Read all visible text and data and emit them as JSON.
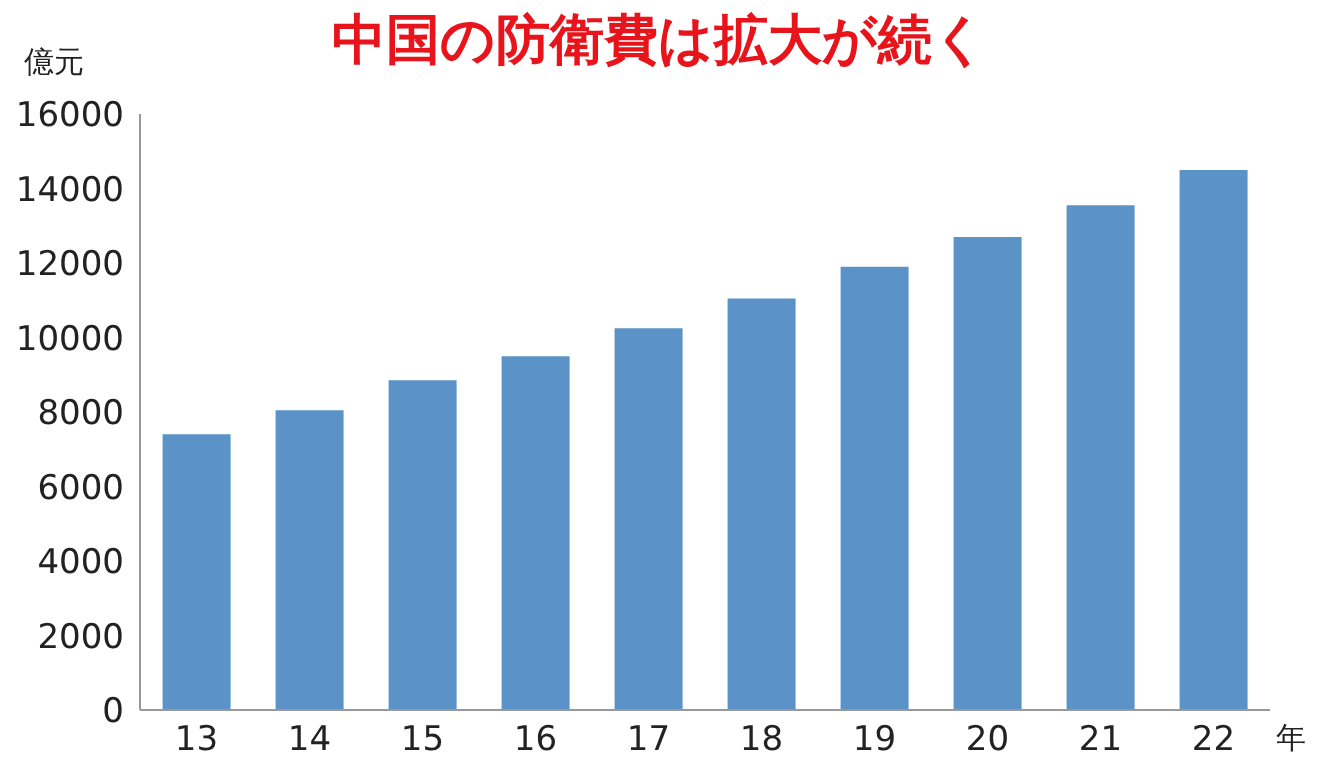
{
  "chart_data": {
    "type": "bar",
    "title": "中国の防衛費は拡大が続く",
    "ylabel": "億元",
    "xlabel": "年",
    "categories": [
      "13",
      "14",
      "15",
      "16",
      "17",
      "18",
      "19",
      "20",
      "21",
      "22"
    ],
    "values": [
      7400,
      8050,
      8850,
      9500,
      10250,
      11050,
      11900,
      12700,
      13550,
      14500
    ],
    "color": "#5b93c8",
    "ylim": [
      0,
      16000
    ],
    "yticks": [
      0,
      2000,
      4000,
      6000,
      8000,
      10000,
      12000,
      14000,
      16000
    ],
    "grid": false,
    "legend": false
  }
}
